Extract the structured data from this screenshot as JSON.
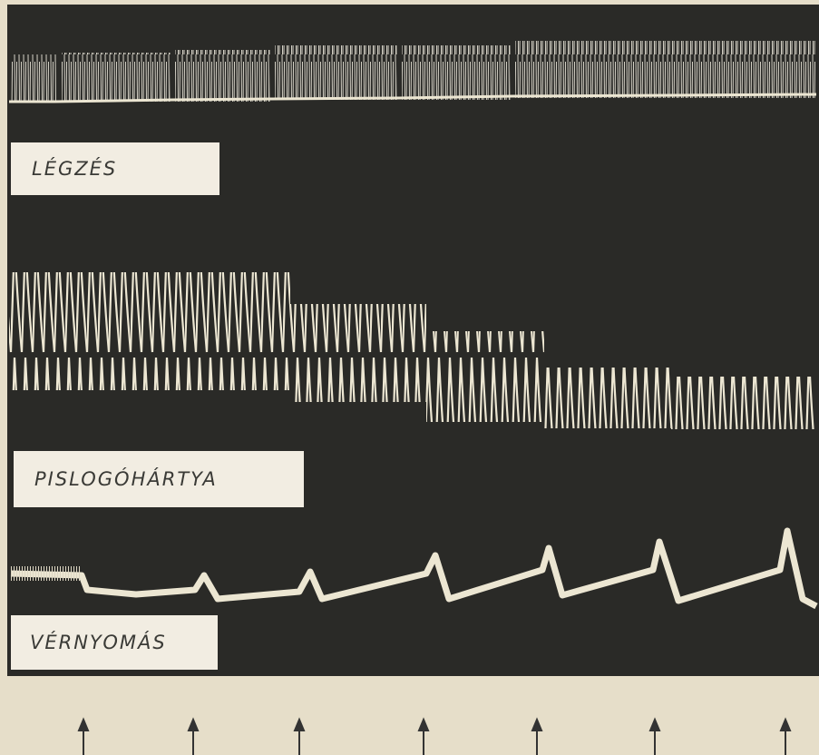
{
  "panels": [
    {
      "label": "LÉGZÉS"
    },
    {
      "label": "PISLOGÓHÁRTYA"
    },
    {
      "label": "VÉRNYOMÁS"
    }
  ]
}
